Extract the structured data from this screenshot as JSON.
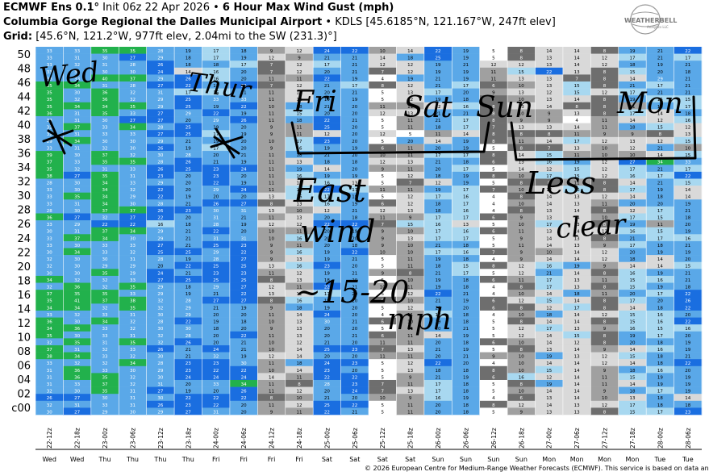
{
  "header": {
    "line1_model": "ECMWF Ens 0.1",
    "line1_init": "Init 06z 22 Apr 2026",
    "line1_product": "6 Hour Max Wind Gust (mph)",
    "line2_site": "Columbia Gorge Regional the Dalles Municipal Airport",
    "line2_info": "KDLS [45.6185°N, 121.167°W, 247ft elev]",
    "line3_label": "Grid:",
    "line3_info": "[45.6°N, 121.2°W, 977ft elev, 2.04mi to the SW (231.3)°]"
  },
  "logo": {
    "text": "WEATHERBELL",
    "subtext": "Analytics LLC"
  },
  "copyright": "© 2026 European Centre for Medium-Range Weather Forecasts (ECMWF). This service is based on data and",
  "colors": {
    "cyan": "#00ffff",
    "light_blue": "#a8d8f0",
    "mid_blue": "#5aa8e8",
    "blue": "#1a6ee0",
    "green": "#22b14c",
    "light_grey": "#d9d9d9",
    "grey": "#a0a0a0",
    "dark_grey": "#6e6e6e"
  },
  "annotations": [
    "Wed",
    "Thur",
    "Fri",
    "Sat",
    "Sun",
    "Mon",
    "East",
    "wind",
    "~15-20",
    "mph",
    "Less",
    "clear"
  ],
  "chart_data": {
    "type": "heatmap",
    "title": "6 Hour Max Wind Gust (mph)",
    "y_labels": [
      "50",
      "48",
      "46",
      "44",
      "42",
      "40",
      "38",
      "36",
      "34",
      "32",
      "30",
      "28",
      "26",
      "24",
      "22",
      "20",
      "18",
      "16",
      "14",
      "12",
      "10",
      "08",
      "06",
      "04",
      "02",
      "c00"
    ],
    "x_labels": [
      "22-12z",
      "22-18z",
      "23-00z",
      "23-06z",
      "23-12z",
      "23-18z",
      "24-00z",
      "24-06z",
      "24-12z",
      "24-18z",
      "25-00z",
      "25-06z",
      "25-12z",
      "25-18z",
      "26-00z",
      "26-06z",
      "26-12z",
      "26-18z",
      "27-00z",
      "27-06z",
      "27-12z",
      "27-18z",
      "28-00z",
      "28-06z"
    ],
    "day_labels": [
      "Wed",
      "Wed",
      "Thu",
      "Thu",
      "Thu",
      "Thu",
      "Fri",
      "Fri",
      "Fri",
      "Fri",
      "Sat",
      "Sat",
      "Sat",
      "Sat",
      "Sun",
      "Sun",
      "Sun",
      "Sun",
      "Mon",
      "Mon",
      "Mon",
      "Mon",
      "Tue",
      "Tue"
    ],
    "member_rows": [
      [
        33,
        33,
        35,
        35,
        28,
        19,
        17,
        18,
        9,
        12,
        24,
        22,
        10,
        14,
        22,
        19,
        5,
        8,
        14,
        14,
        8,
        19,
        21,
        22
      ],
      [
        33,
        31,
        30,
        27,
        29,
        18,
        17,
        19,
        12,
        9,
        21,
        21,
        14,
        18,
        25,
        19,
        5,
        8,
        13,
        14,
        12,
        17,
        21,
        17
      ],
      [
        33,
        32,
        31,
        28,
        26,
        18,
        18,
        17,
        7,
        12,
        17,
        21,
        12,
        12,
        19,
        21,
        12,
        12,
        13,
        14,
        12,
        18,
        19,
        21
      ],
      [
        33,
        31,
        30,
        30,
        24,
        14,
        16,
        20,
        7,
        12,
        20,
        21,
        7,
        12,
        19,
        19,
        11,
        15,
        22,
        13,
        8,
        15,
        20,
        18
      ],
      [
        33,
        33,
        40,
        37,
        29,
        26,
        16,
        20,
        11,
        11,
        22,
        19,
        4,
        19,
        21,
        19,
        11,
        13,
        13,
        7,
        8,
        14,
        29,
        21
      ],
      [
        35,
        34,
        31,
        28,
        27,
        22,
        18,
        22,
        7,
        12,
        21,
        17,
        8,
        12,
        21,
        17,
        6,
        10,
        13,
        15,
        8,
        21,
        17,
        21
      ],
      [
        35,
        30,
        36,
        32,
        31,
        17,
        16,
        21,
        11,
        13,
        20,
        21,
        5,
        13,
        17,
        20,
        9,
        13,
        12,
        15,
        12,
        17,
        21,
        21
      ],
      [
        35,
        32,
        36,
        32,
        29,
        25,
        33,
        33,
        11,
        14,
        19,
        19,
        5,
        12,
        19,
        18,
        7,
        10,
        13,
        14,
        8,
        19,
        15,
        15
      ],
      [
        35,
        34,
        34,
        35,
        29,
        25,
        19,
        22,
        10,
        18,
        21,
        20,
        11,
        11,
        12,
        16,
        8,
        13,
        14,
        8,
        8,
        11,
        19,
        17
      ],
      [
        36,
        31,
        35,
        33,
        27,
        29,
        22,
        19,
        11,
        15,
        20,
        20,
        12,
        13,
        21,
        21,
        8,
        10,
        9,
        13,
        8,
        17,
        14,
        18
      ],
      [
        33,
        31,
        30,
        27,
        27,
        20,
        29,
        26,
        11,
        18,
        22,
        21,
        5,
        11,
        21,
        17,
        8,
        9,
        9,
        4,
        11,
        14,
        12,
        16
      ],
      [
        32,
        37,
        33,
        34,
        28,
        25,
        19,
        20,
        9,
        11,
        25,
        20,
        5,
        11,
        18,
        17,
        7,
        13,
        13,
        14,
        11,
        18,
        15,
        12
      ],
      [
        32,
        31,
        33,
        33,
        27,
        25,
        17,
        19,
        9,
        11,
        12,
        20,
        12,
        5,
        11,
        14,
        8,
        8,
        8,
        11,
        9,
        9,
        8,
        13
      ],
      [
        29,
        34,
        30,
        30,
        29,
        21,
        19,
        20,
        10,
        17,
        23,
        20,
        5,
        20,
        14,
        19,
        8,
        11,
        14,
        17,
        12,
        13,
        12,
        15
      ],
      [
        33,
        31,
        32,
        30,
        26,
        19,
        17,
        20,
        9,
        16,
        19,
        19,
        6,
        11,
        20,
        19,
        5,
        8,
        7,
        13,
        10,
        12,
        21,
        10
      ],
      [
        39,
        30,
        37,
        32,
        30,
        28,
        20,
        21,
        11,
        18,
        21,
        20,
        10,
        11,
        17,
        17,
        8,
        14,
        15,
        11,
        10,
        10,
        14,
        15
      ],
      [
        37,
        33,
        35,
        35,
        28,
        26,
        21,
        19,
        11,
        13,
        18,
        18,
        12,
        13,
        21,
        18,
        6,
        13,
        16,
        19,
        12,
        27,
        34,
        33
      ],
      [
        35,
        32,
        31,
        33,
        26,
        25,
        23,
        24,
        11,
        19,
        14,
        20,
        9,
        11,
        20,
        17,
        5,
        14,
        12,
        15,
        12,
        17,
        21,
        17
      ],
      [
        38,
        27,
        35,
        31,
        23,
        20,
        23,
        20,
        11,
        16,
        19,
        19,
        5,
        12,
        18,
        19,
        8,
        10,
        17,
        15,
        12,
        16,
        17,
        22
      ],
      [
        28,
        30,
        34,
        33,
        29,
        20,
        22,
        19,
        11,
        12,
        16,
        13,
        5,
        7,
        12,
        19,
        5,
        8,
        8,
        11,
        8,
        14,
        21,
        15
      ],
      [
        33,
        30,
        34,
        32,
        22,
        20,
        29,
        24,
        11,
        16,
        22,
        17,
        11,
        11,
        19,
        17,
        7,
        10,
        12,
        16,
        8,
        17,
        19,
        14
      ],
      [
        33,
        35,
        34,
        29,
        22,
        19,
        20,
        20,
        13,
        16,
        17,
        19,
        5,
        12,
        17,
        16,
        4,
        8,
        14,
        13,
        12,
        14,
        18,
        14
      ],
      [
        33,
        31,
        34,
        30,
        28,
        21,
        26,
        27,
        8,
        13,
        16,
        19,
        6,
        12,
        18,
        17,
        4,
        10,
        14,
        13,
        11,
        20,
        20,
        19
      ],
      [
        28,
        30,
        37,
        37,
        26,
        23,
        30,
        31,
        13,
        10,
        12,
        21,
        12,
        13,
        18,
        16,
        4,
        8,
        13,
        14,
        8,
        12,
        17,
        21
      ],
      [
        36,
        27,
        32,
        27,
        22,
        20,
        31,
        21,
        11,
        13,
        20,
        18,
        11,
        9,
        17,
        17,
        6,
        9,
        13,
        14,
        10,
        17,
        15,
        18
      ],
      [
        33,
        29,
        22,
        22,
        16,
        18,
        28,
        19,
        12,
        12,
        22,
        22,
        7,
        15,
        16,
        13,
        5,
        10,
        17,
        13,
        8,
        19,
        11,
        20
      ],
      [
        30,
        31,
        37,
        34,
        29,
        21,
        22,
        20,
        10,
        11,
        20,
        19,
        9,
        10,
        17,
        16,
        6,
        11,
        13,
        14,
        12,
        16,
        15,
        19
      ],
      [
        33,
        37,
        34,
        30,
        29,
        21,
        31,
        31,
        10,
        16,
        20,
        20,
        9,
        13,
        17,
        17,
        5,
        9,
        14,
        13,
        8,
        21,
        17,
        16
      ],
      [
        33,
        30,
        33,
        33,
        27,
        21,
        25,
        23,
        9,
        11,
        20,
        18,
        9,
        10,
        21,
        18,
        5,
        11,
        14,
        13,
        9,
        17,
        18,
        21
      ],
      [
        30,
        34,
        33,
        32,
        25,
        25,
        29,
        22,
        9,
        16,
        19,
        22,
        10,
        10,
        17,
        16,
        7,
        9,
        10,
        14,
        12,
        20,
        19,
        19
      ],
      [
        32,
        30,
        30,
        31,
        28,
        19,
        28,
        27,
        9,
        13,
        19,
        21,
        5,
        11,
        19,
        18,
        4,
        9,
        14,
        14,
        12,
        18,
        14,
        20
      ],
      [
        32,
        30,
        29,
        29,
        20,
        22,
        25,
        25,
        13,
        16,
        23,
        20,
        5,
        11,
        18,
        15,
        8,
        12,
        16,
        19,
        9,
        14,
        14,
        15
      ],
      [
        30,
        30,
        35,
        29,
        24,
        21,
        23,
        23,
        11,
        12,
        19,
        21,
        9,
        8,
        21,
        17,
        5,
        12,
        21,
        14,
        8,
        16,
        19,
        21
      ],
      [
        34,
        32,
        32,
        33,
        27,
        25,
        25,
        25,
        8,
        13,
        18,
        20,
        5,
        10,
        19,
        18,
        6,
        11,
        17,
        13,
        11,
        15,
        16,
        21
      ],
      [
        32,
        36,
        32,
        35,
        29,
        18,
        29,
        27,
        12,
        11,
        22,
        21,
        10,
        11,
        19,
        18,
        4,
        8,
        17,
        13,
        8,
        15,
        19,
        18
      ],
      [
        37,
        35,
        35,
        33,
        29,
        19,
        21,
        22,
        13,
        12,
        17,
        20,
        5,
        12,
        22,
        21,
        4,
        10,
        14,
        18,
        11,
        20,
        17,
        22
      ],
      [
        35,
        41,
        37,
        38,
        32,
        28,
        27,
        27,
        8,
        16,
        19,
        20,
        6,
        10,
        21,
        19,
        6,
        12,
        15,
        14,
        8,
        17,
        20,
        26
      ],
      [
        34,
        34,
        32,
        35,
        32,
        29,
        21,
        19,
        9,
        18,
        19,
        20,
        5,
        12,
        20,
        20,
        6,
        8,
        12,
        17,
        8,
        14,
        18,
        22
      ],
      [
        33,
        32,
        33,
        31,
        30,
        29,
        20,
        20,
        11,
        14,
        24,
        20,
        4,
        11,
        17,
        18,
        4,
        10,
        18,
        14,
        12,
        15,
        16,
        20
      ],
      [
        36,
        30,
        34,
        32,
        28,
        22,
        19,
        18,
        10,
        13,
        30,
        21,
        6,
        10,
        19,
        18,
        5,
        8,
        14,
        14,
        8,
        15,
        16,
        22
      ],
      [
        34,
        36,
        33,
        32,
        30,
        30,
        18,
        20,
        9,
        13,
        20,
        20,
        5,
        11,
        20,
        21,
        5,
        12,
        17,
        13,
        9,
        16,
        15,
        16
      ],
      [
        35,
        30,
        33,
        31,
        32,
        28,
        20,
        22,
        11,
        13,
        20,
        21,
        6,
        11,
        14,
        19,
        5,
        12,
        14,
        15,
        8,
        19,
        17,
        20
      ],
      [
        32,
        35,
        31,
        35,
        32,
        26,
        20,
        21,
        10,
        12,
        21,
        20,
        11,
        11,
        20,
        18,
        6,
        10,
        14,
        12,
        8,
        20,
        18,
        19
      ],
      [
        37,
        31,
        32,
        33,
        26,
        21,
        24,
        21,
        10,
        14,
        25,
        23,
        7,
        13,
        21,
        19,
        5,
        8,
        13,
        14,
        9,
        14,
        16,
        19
      ],
      [
        38,
        34,
        33,
        32,
        30,
        21,
        32,
        19,
        12,
        14,
        20,
        20,
        11,
        11,
        20,
        21,
        9,
        10,
        19,
        13,
        12,
        15,
        18,
        21
      ],
      [
        33,
        32,
        32,
        34,
        28,
        23,
        23,
        30,
        11,
        18,
        24,
        23,
        5,
        12,
        22,
        20,
        4,
        10,
        14,
        14,
        12,
        14,
        18,
        22
      ],
      [
        31,
        36,
        33,
        30,
        29,
        23,
        22,
        22,
        10,
        14,
        23,
        20,
        5,
        13,
        18,
        18,
        8,
        10,
        15,
        14,
        9,
        18,
        16,
        20
      ],
      [
        31,
        36,
        35,
        32,
        30,
        24,
        24,
        24,
        14,
        11,
        22,
        22,
        5,
        9,
        21,
        19,
        6,
        16,
        12,
        14,
        11,
        15,
        19,
        19
      ],
      [
        31,
        33,
        37,
        32,
        31,
        20,
        33,
        34,
        11,
        8,
        28,
        23,
        7,
        11,
        17,
        18,
        5,
        8,
        19,
        14,
        11,
        14,
        19,
        19
      ],
      [
        32,
        30,
        35,
        31,
        27,
        19,
        20,
        26,
        11,
        12,
        20,
        24,
        7,
        13,
        17,
        18,
        5,
        10,
        14,
        14,
        9,
        18,
        17,
        19
      ],
      [
        26,
        27,
        30,
        31,
        30,
        22,
        22,
        22,
        8,
        10,
        21,
        20,
        10,
        9,
        16,
        19,
        4,
        6,
        13,
        14,
        10,
        13,
        18,
        14
      ],
      [
        32,
        31,
        33,
        31,
        26,
        23,
        22,
        20,
        11,
        12,
        25,
        22,
        5,
        11,
        20,
        18,
        8,
        12,
        14,
        13,
        12,
        17,
        18,
        18
      ],
      [
        30,
        27,
        29,
        30,
        29,
        27,
        31,
        20,
        9,
        11,
        22,
        21,
        5,
        11,
        20,
        18,
        5,
        9,
        13,
        13,
        8,
        15,
        17,
        23
      ]
    ]
  }
}
